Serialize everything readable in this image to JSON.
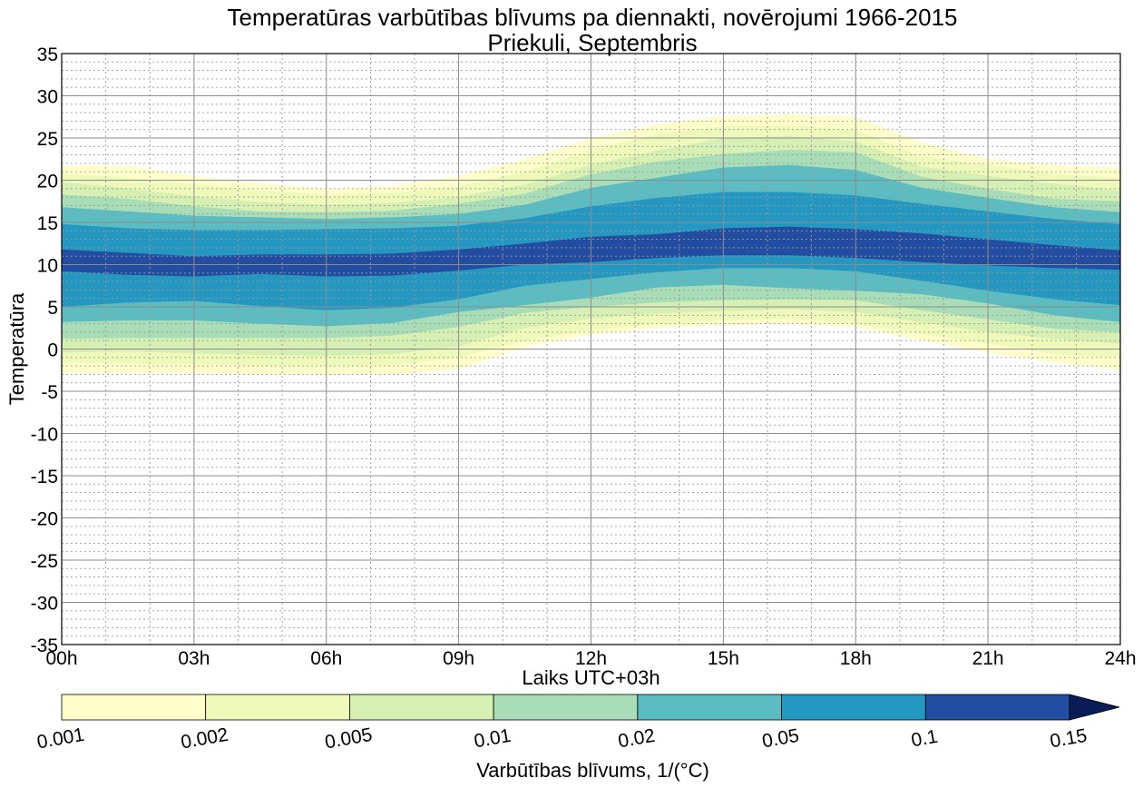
{
  "chart_data": {
    "type": "contourf",
    "title": "Temperatūras varbūtības blīvums pa diennakti, novērojumi 1966-2015",
    "subtitle": "Priekuli, Septembris",
    "xlabel": "Laiks UTC+03h",
    "ylabel": "Temperatūra",
    "x_ticks": [
      "00h",
      "03h",
      "06h",
      "09h",
      "12h",
      "15h",
      "18h",
      "21h",
      "24h"
    ],
    "x_hours": [
      0,
      3,
      6,
      9,
      12,
      15,
      18,
      21,
      24
    ],
    "xlim": [
      0,
      24
    ],
    "y_ticks": [
      "35",
      "30",
      "25",
      "20",
      "15",
      "10",
      "5",
      "0",
      "-5",
      "-10",
      "-15",
      "-20",
      "-25",
      "-30",
      "-35"
    ],
    "ylim": [
      -35,
      35
    ],
    "grid": true,
    "colorbar": {
      "label": "Varbūtības blīvums, 1/(°C)",
      "levels": [
        0.001,
        0.002,
        0.005,
        0.01,
        0.02,
        0.05,
        0.1,
        0.15
      ],
      "tick_labels": [
        "0.001",
        "0.002",
        "0.005",
        "0.01",
        "0.02",
        "0.05",
        "0.1",
        "0.15"
      ],
      "colors": [
        "#ffffcc",
        "#eff9b9",
        "#d6efb3",
        "#a9ddb7",
        "#5bbcc1",
        "#2498c1",
        "#234da0"
      ],
      "extend_color": "#081d58",
      "extend": "max"
    },
    "hours": [
      0,
      1.5,
      3,
      4.5,
      6,
      7.5,
      9,
      10.5,
      12,
      13.5,
      15,
      16.5,
      18,
      19.5,
      21,
      22.5,
      24
    ],
    "bands": [
      {
        "level": "0.001",
        "upper": [
          21.7,
          21.7,
          20.5,
          19.6,
          19.0,
          19.3,
          20.5,
          22.5,
          25.0,
          26.6,
          27.6,
          27.8,
          27.5,
          24.5,
          22.5,
          21.8,
          21.5
        ],
        "lower": [
          -2.8,
          -2.8,
          -2.8,
          -3.0,
          -3.1,
          -3.0,
          -2.4,
          0.2,
          1.7,
          2.5,
          2.8,
          3.0,
          2.6,
          1.0,
          -0.4,
          -1.6,
          -2.5
        ]
      },
      {
        "level": "0.002",
        "upper": [
          20.8,
          20.3,
          19.5,
          18.8,
          18.3,
          18.5,
          19.3,
          21.0,
          23.5,
          25.5,
          26.4,
          26.5,
          26.0,
          22.8,
          21.8,
          20.8,
          20.2
        ],
        "lower": [
          -1.6,
          -1.7,
          -1.8,
          -2.0,
          -2.0,
          -1.9,
          -1.0,
          1.0,
          2.2,
          3.0,
          3.4,
          3.6,
          3.0,
          1.8,
          0.6,
          -0.6,
          -1.0
        ]
      },
      {
        "level": "0.005",
        "upper": [
          19.8,
          19.0,
          18.1,
          17.4,
          17.1,
          17.3,
          18.0,
          19.5,
          21.8,
          23.5,
          25.0,
          25.2,
          24.6,
          21.6,
          20.5,
          19.6,
          18.8
        ],
        "lower": [
          -0.4,
          -0.3,
          -0.5,
          -0.7,
          -0.8,
          -0.6,
          0.3,
          2.5,
          3.6,
          4.2,
          4.5,
          4.7,
          4.4,
          3.2,
          2.0,
          1.2,
          0.6
        ]
      },
      {
        "level": "0.01",
        "upper": [
          18.3,
          17.8,
          16.9,
          16.3,
          16.2,
          16.4,
          17.2,
          18.4,
          20.7,
          22.2,
          23.1,
          23.6,
          23.3,
          20.4,
          19.0,
          17.8,
          17.5
        ],
        "lower": [
          1.2,
          1.3,
          1.3,
          1.3,
          1.3,
          1.6,
          2.6,
          4.3,
          5.0,
          5.5,
          5.8,
          5.9,
          5.8,
          4.6,
          3.5,
          2.4,
          2.0
        ]
      },
      {
        "level": "0.02",
        "upper": [
          16.8,
          16.3,
          15.8,
          15.6,
          15.4,
          15.6,
          16.0,
          17.1,
          19.1,
          20.3,
          21.5,
          21.8,
          21.2,
          19.1,
          17.9,
          16.8,
          16.2
        ],
        "lower": [
          3.2,
          3.4,
          3.4,
          3.0,
          2.7,
          3.1,
          4.4,
          5.2,
          6.1,
          7.3,
          7.6,
          7.2,
          6.9,
          6.5,
          5.4,
          4.0,
          3.2
        ]
      },
      {
        "level": "0.05",
        "upper": [
          14.8,
          14.3,
          14.1,
          14.1,
          14.2,
          14.3,
          14.6,
          15.5,
          16.9,
          17.9,
          18.6,
          18.6,
          18.2,
          17.2,
          16.3,
          15.4,
          14.8
        ],
        "lower": [
          5.0,
          5.5,
          5.7,
          5.1,
          4.6,
          4.9,
          5.9,
          7.5,
          8.3,
          9.1,
          9.6,
          9.6,
          9.2,
          8.1,
          6.9,
          5.9,
          5.2
        ]
      },
      {
        "level": "0.1",
        "upper": [
          11.8,
          11.4,
          11.0,
          11.2,
          11.2,
          11.3,
          11.8,
          12.5,
          13.3,
          13.6,
          14.3,
          14.5,
          14.2,
          13.7,
          13.0,
          12.3,
          11.7
        ],
        "lower": [
          9.2,
          8.8,
          8.6,
          8.9,
          8.6,
          8.7,
          9.3,
          10.0,
          10.3,
          10.8,
          11.1,
          11.1,
          10.8,
          10.3,
          9.9,
          9.6,
          9.4
        ]
      }
    ]
  }
}
